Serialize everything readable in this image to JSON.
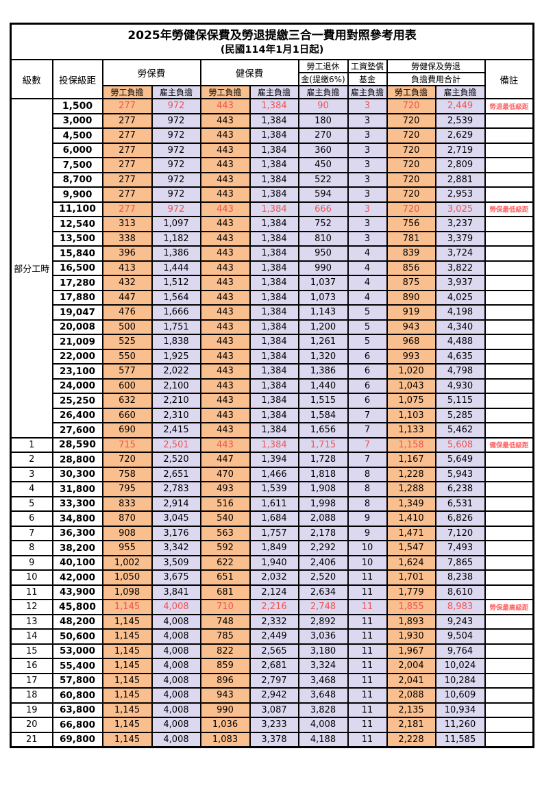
{
  "title": "2025年勞健保保費及勞退提繳三合一費用對照參考用表",
  "subtitle": "(民國114年1月1日起)",
  "colors": {
    "employee_bg": "#fabf8f",
    "employer_bg": "#dcd8f0",
    "highlight_text": "#ef5350",
    "remark_text": "#ff6666",
    "border": "#000000"
  },
  "header": {
    "level": "級數",
    "bracket": "投保級距",
    "labor_fee": "勞保費",
    "health_fee": "健保費",
    "pension_line1": "勞工退休",
    "pension_line2": "金(提繳6%)",
    "wage_fund_line1": "工資墊償",
    "wage_fund_line2": "基金",
    "total_line1": "勞健保及勞退",
    "total_line2": "負擔費用合計",
    "remark": "備註",
    "employee_share": "勞工負擔",
    "employer_share": "雇主負擔"
  },
  "part_time_label": "部分工時",
  "part_time_rowspan": 23,
  "rows": [
    {
      "level": "",
      "bracket": "1,500",
      "v": [
        "277",
        "972",
        "443",
        "1,384",
        "90",
        "3",
        "720",
        "2,449"
      ],
      "remark": "勞退最低級距",
      "highlight": true
    },
    {
      "level": "",
      "bracket": "3,000",
      "v": [
        "277",
        "972",
        "443",
        "1,384",
        "180",
        "3",
        "720",
        "2,539"
      ],
      "remark": "",
      "highlight": false
    },
    {
      "level": "",
      "bracket": "4,500",
      "v": [
        "277",
        "972",
        "443",
        "1,384",
        "270",
        "3",
        "720",
        "2,629"
      ],
      "remark": "",
      "highlight": false
    },
    {
      "level": "",
      "bracket": "6,000",
      "v": [
        "277",
        "972",
        "443",
        "1,384",
        "360",
        "3",
        "720",
        "2,719"
      ],
      "remark": "",
      "highlight": false
    },
    {
      "level": "",
      "bracket": "7,500",
      "v": [
        "277",
        "972",
        "443",
        "1,384",
        "450",
        "3",
        "720",
        "2,809"
      ],
      "remark": "",
      "highlight": false
    },
    {
      "level": "",
      "bracket": "8,700",
      "v": [
        "277",
        "972",
        "443",
        "1,384",
        "522",
        "3",
        "720",
        "2,881"
      ],
      "remark": "",
      "highlight": false
    },
    {
      "level": "",
      "bracket": "9,900",
      "v": [
        "277",
        "972",
        "443",
        "1,384",
        "594",
        "3",
        "720",
        "2,953"
      ],
      "remark": "",
      "highlight": false
    },
    {
      "level": "",
      "bracket": "11,100",
      "v": [
        "277",
        "972",
        "443",
        "1,384",
        "666",
        "3",
        "720",
        "3,025"
      ],
      "remark": "勞保最低級距",
      "highlight": true
    },
    {
      "level": "",
      "bracket": "12,540",
      "v": [
        "313",
        "1,097",
        "443",
        "1,384",
        "752",
        "3",
        "756",
        "3,237"
      ],
      "remark": "",
      "highlight": false
    },
    {
      "level": "",
      "bracket": "13,500",
      "v": [
        "338",
        "1,182",
        "443",
        "1,384",
        "810",
        "3",
        "781",
        "3,379"
      ],
      "remark": "",
      "highlight": false
    },
    {
      "level": "",
      "bracket": "15,840",
      "v": [
        "396",
        "1,386",
        "443",
        "1,384",
        "950",
        "4",
        "839",
        "3,724"
      ],
      "remark": "",
      "highlight": false
    },
    {
      "level": "",
      "bracket": "16,500",
      "v": [
        "413",
        "1,444",
        "443",
        "1,384",
        "990",
        "4",
        "856",
        "3,822"
      ],
      "remark": "",
      "highlight": false
    },
    {
      "level": "",
      "bracket": "17,280",
      "v": [
        "432",
        "1,512",
        "443",
        "1,384",
        "1,037",
        "4",
        "875",
        "3,937"
      ],
      "remark": "",
      "highlight": false
    },
    {
      "level": "",
      "bracket": "17,880",
      "v": [
        "447",
        "1,564",
        "443",
        "1,384",
        "1,073",
        "4",
        "890",
        "4,025"
      ],
      "remark": "",
      "highlight": false
    },
    {
      "level": "",
      "bracket": "19,047",
      "v": [
        "476",
        "1,666",
        "443",
        "1,384",
        "1,143",
        "5",
        "919",
        "4,198"
      ],
      "remark": "",
      "highlight": false
    },
    {
      "level": "",
      "bracket": "20,008",
      "v": [
        "500",
        "1,751",
        "443",
        "1,384",
        "1,200",
        "5",
        "943",
        "4,340"
      ],
      "remark": "",
      "highlight": false
    },
    {
      "level": "",
      "bracket": "21,009",
      "v": [
        "525",
        "1,838",
        "443",
        "1,384",
        "1,261",
        "5",
        "968",
        "4,488"
      ],
      "remark": "",
      "highlight": false
    },
    {
      "level": "",
      "bracket": "22,000",
      "v": [
        "550",
        "1,925",
        "443",
        "1,384",
        "1,320",
        "6",
        "993",
        "4,635"
      ],
      "remark": "",
      "highlight": false
    },
    {
      "level": "",
      "bracket": "23,100",
      "v": [
        "577",
        "2,022",
        "443",
        "1,384",
        "1,386",
        "6",
        "1,020",
        "4,798"
      ],
      "remark": "",
      "highlight": false
    },
    {
      "level": "",
      "bracket": "24,000",
      "v": [
        "600",
        "2,100",
        "443",
        "1,384",
        "1,440",
        "6",
        "1,043",
        "4,930"
      ],
      "remark": "",
      "highlight": false
    },
    {
      "level": "",
      "bracket": "25,250",
      "v": [
        "632",
        "2,210",
        "443",
        "1,384",
        "1,515",
        "6",
        "1,075",
        "5,115"
      ],
      "remark": "",
      "highlight": false
    },
    {
      "level": "",
      "bracket": "26,400",
      "v": [
        "660",
        "2,310",
        "443",
        "1,384",
        "1,584",
        "7",
        "1,103",
        "5,285"
      ],
      "remark": "",
      "highlight": false
    },
    {
      "level": "",
      "bracket": "27,600",
      "v": [
        "690",
        "2,415",
        "443",
        "1,384",
        "1,656",
        "7",
        "1,133",
        "5,462"
      ],
      "remark": "",
      "highlight": false
    },
    {
      "level": "1",
      "bracket": "28,590",
      "v": [
        "715",
        "2,501",
        "443",
        "1,384",
        "1,715",
        "7",
        "1,158",
        "5,608"
      ],
      "remark": "健保最低級距",
      "highlight": true
    },
    {
      "level": "2",
      "bracket": "28,800",
      "v": [
        "720",
        "2,520",
        "447",
        "1,394",
        "1,728",
        "7",
        "1,167",
        "5,649"
      ],
      "remark": "",
      "highlight": false
    },
    {
      "level": "3",
      "bracket": "30,300",
      "v": [
        "758",
        "2,651",
        "470",
        "1,466",
        "1,818",
        "8",
        "1,228",
        "5,943"
      ],
      "remark": "",
      "highlight": false
    },
    {
      "level": "4",
      "bracket": "31,800",
      "v": [
        "795",
        "2,783",
        "493",
        "1,539",
        "1,908",
        "8",
        "1,288",
        "6,238"
      ],
      "remark": "",
      "highlight": false
    },
    {
      "level": "5",
      "bracket": "33,300",
      "v": [
        "833",
        "2,914",
        "516",
        "1,611",
        "1,998",
        "8",
        "1,349",
        "6,531"
      ],
      "remark": "",
      "highlight": false
    },
    {
      "level": "6",
      "bracket": "34,800",
      "v": [
        "870",
        "3,045",
        "540",
        "1,684",
        "2,088",
        "9",
        "1,410",
        "6,826"
      ],
      "remark": "",
      "highlight": false
    },
    {
      "level": "7",
      "bracket": "36,300",
      "v": [
        "908",
        "3,176",
        "563",
        "1,757",
        "2,178",
        "9",
        "1,471",
        "7,120"
      ],
      "remark": "",
      "highlight": false
    },
    {
      "level": "8",
      "bracket": "38,200",
      "v": [
        "955",
        "3,342",
        "592",
        "1,849",
        "2,292",
        "10",
        "1,547",
        "7,493"
      ],
      "remark": "",
      "highlight": false
    },
    {
      "level": "9",
      "bracket": "40,100",
      "v": [
        "1,002",
        "3,509",
        "622",
        "1,940",
        "2,406",
        "10",
        "1,624",
        "7,865"
      ],
      "remark": "",
      "highlight": false
    },
    {
      "level": "10",
      "bracket": "42,000",
      "v": [
        "1,050",
        "3,675",
        "651",
        "2,032",
        "2,520",
        "11",
        "1,701",
        "8,238"
      ],
      "remark": "",
      "highlight": false
    },
    {
      "level": "11",
      "bracket": "43,900",
      "v": [
        "1,098",
        "3,841",
        "681",
        "2,124",
        "2,634",
        "11",
        "1,779",
        "8,610"
      ],
      "remark": "",
      "highlight": false
    },
    {
      "level": "12",
      "bracket": "45,800",
      "v": [
        "1,145",
        "4,008",
        "710",
        "2,216",
        "2,748",
        "11",
        "1,855",
        "8,983"
      ],
      "remark": "勞保最高級距",
      "highlight": true
    },
    {
      "level": "13",
      "bracket": "48,200",
      "v": [
        "1,145",
        "4,008",
        "748",
        "2,332",
        "2,892",
        "11",
        "1,893",
        "9,243"
      ],
      "remark": "",
      "highlight": false
    },
    {
      "level": "14",
      "bracket": "50,600",
      "v": [
        "1,145",
        "4,008",
        "785",
        "2,449",
        "3,036",
        "11",
        "1,930",
        "9,504"
      ],
      "remark": "",
      "highlight": false
    },
    {
      "level": "15",
      "bracket": "53,000",
      "v": [
        "1,145",
        "4,008",
        "822",
        "2,565",
        "3,180",
        "11",
        "1,967",
        "9,764"
      ],
      "remark": "",
      "highlight": false
    },
    {
      "level": "16",
      "bracket": "55,400",
      "v": [
        "1,145",
        "4,008",
        "859",
        "2,681",
        "3,324",
        "11",
        "2,004",
        "10,024"
      ],
      "remark": "",
      "highlight": false
    },
    {
      "level": "17",
      "bracket": "57,800",
      "v": [
        "1,145",
        "4,008",
        "896",
        "2,797",
        "3,468",
        "11",
        "2,041",
        "10,284"
      ],
      "remark": "",
      "highlight": false
    },
    {
      "level": "18",
      "bracket": "60,800",
      "v": [
        "1,145",
        "4,008",
        "943",
        "2,942",
        "3,648",
        "11",
        "2,088",
        "10,609"
      ],
      "remark": "",
      "highlight": false
    },
    {
      "level": "19",
      "bracket": "63,800",
      "v": [
        "1,145",
        "4,008",
        "990",
        "3,087",
        "3,828",
        "11",
        "2,135",
        "10,934"
      ],
      "remark": "",
      "highlight": false
    },
    {
      "level": "20",
      "bracket": "66,800",
      "v": [
        "1,145",
        "4,008",
        "1,036",
        "3,233",
        "4,008",
        "11",
        "2,181",
        "11,260"
      ],
      "remark": "",
      "highlight": false
    },
    {
      "level": "21",
      "bracket": "69,800",
      "v": [
        "1,145",
        "4,008",
        "1,083",
        "3,378",
        "4,188",
        "11",
        "2,228",
        "11,585"
      ],
      "remark": "",
      "highlight": false
    }
  ]
}
